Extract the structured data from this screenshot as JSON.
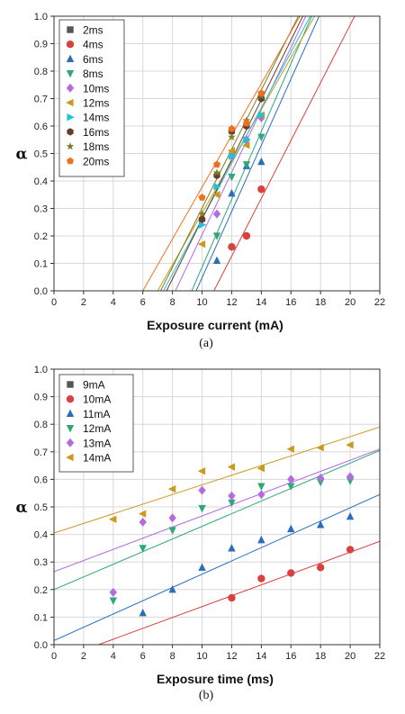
{
  "chart_data": [
    {
      "type": "scatter",
      "panel_label": "(a)",
      "xlabel": "Exposure current (mA)",
      "ylabel": "α",
      "xlim": [
        0,
        22
      ],
      "ylim": [
        0,
        1.0
      ],
      "xticks": [
        "0",
        "2",
        "4",
        "6",
        "8",
        "10",
        "12",
        "14",
        "16",
        "18",
        "20",
        "22"
      ],
      "yticks": [
        "0.0",
        "0.1",
        "0.2",
        "0.3",
        "0.4",
        "0.5",
        "0.6",
        "0.7",
        "0.8",
        "0.9",
        "1.0"
      ],
      "grid": true,
      "legend": "top-left",
      "series": [
        {
          "name": "2ms",
          "marker": "square",
          "color": "#555555",
          "x": [],
          "y": [],
          "fit": null
        },
        {
          "name": "4ms",
          "marker": "circle",
          "color": "#d9413f",
          "x": [
            12,
            13,
            14
          ],
          "y": [
            0.16,
            0.2,
            0.37
          ],
          "fit": [
            [
              10.8,
              0
            ],
            [
              20.3,
              1.0
            ]
          ]
        },
        {
          "name": "6ms",
          "marker": "triangle-up",
          "color": "#2a6ebb",
          "x": [
            11,
            12,
            13,
            14
          ],
          "y": [
            0.11,
            0.355,
            0.455,
            0.47
          ],
          "fit": [
            [
              9.6,
              0
            ],
            [
              17.9,
              1.0
            ]
          ]
        },
        {
          "name": "8ms",
          "marker": "triangle-down",
          "color": "#2ea878",
          "x": [
            11,
            12,
            13,
            14
          ],
          "y": [
            0.2,
            0.415,
            0.46,
            0.56
          ],
          "fit": [
            [
              9.3,
              0
            ],
            [
              17.4,
              1.0
            ]
          ]
        },
        {
          "name": "10ms",
          "marker": "diamond",
          "color": "#b56be0",
          "x": [
            11,
            12,
            13,
            14
          ],
          "y": [
            0.28,
            0.49,
            0.55,
            0.63
          ],
          "fit": [
            [
              8.2,
              0
            ],
            [
              17.0,
              1.0
            ]
          ]
        },
        {
          "name": "12ms",
          "marker": "triangle-left",
          "color": "#c89a20",
          "x": [
            10,
            11,
            12,
            13,
            14
          ],
          "y": [
            0.17,
            0.35,
            0.51,
            0.53,
            0.64
          ],
          "fit": [
            [
              7.0,
              0
            ],
            [
              17.6,
              1.0
            ]
          ]
        },
        {
          "name": "14ms",
          "marker": "triangle-right",
          "color": "#1fc4d4",
          "x": [
            10,
            11,
            12,
            13,
            14
          ],
          "y": [
            0.24,
            0.38,
            0.49,
            0.55,
            0.64
          ],
          "fit": [
            [
              7.4,
              0
            ],
            [
              17.3,
              1.0
            ]
          ]
        },
        {
          "name": "16ms",
          "marker": "hexagon",
          "color": "#6b3a2e",
          "x": [
            10,
            11,
            12,
            13,
            14
          ],
          "y": [
            0.26,
            0.42,
            0.58,
            0.6,
            0.7
          ],
          "fit": [
            [
              7.6,
              0
            ],
            [
              16.8,
              1.0
            ]
          ]
        },
        {
          "name": "18ms",
          "marker": "star",
          "color": "#7a7f20",
          "x": [
            10,
            11,
            12,
            13,
            14
          ],
          "y": [
            0.28,
            0.43,
            0.56,
            0.62,
            0.71
          ],
          "fit": [
            [
              7.2,
              0
            ],
            [
              16.5,
              1.0
            ]
          ]
        },
        {
          "name": "20ms",
          "marker": "pentagon",
          "color": "#f07020",
          "x": [
            10,
            11,
            12,
            13,
            14
          ],
          "y": [
            0.34,
            0.46,
            0.59,
            0.61,
            0.72
          ],
          "fit": [
            [
              6.0,
              0
            ],
            [
              16.6,
              1.0
            ]
          ]
        }
      ]
    },
    {
      "type": "scatter",
      "panel_label": "(b)",
      "xlabel": "Exposure time (ms)",
      "ylabel": "α",
      "xlim": [
        0,
        22
      ],
      "ylim": [
        0,
        1.0
      ],
      "xticks": [
        "0",
        "2",
        "4",
        "6",
        "8",
        "10",
        "12",
        "14",
        "16",
        "18",
        "20",
        "22"
      ],
      "yticks": [
        "0.0",
        "0.1",
        "0.2",
        "0.3",
        "0.4",
        "0.5",
        "0.6",
        "0.7",
        "0.8",
        "0.9",
        "1.0"
      ],
      "grid": true,
      "legend": "top-left",
      "series": [
        {
          "name": "9mA",
          "marker": "square",
          "color": "#555555",
          "x": [],
          "y": [],
          "fit": null
        },
        {
          "name": "10mA",
          "marker": "circle",
          "color": "#d9413f",
          "x": [
            12,
            14,
            16,
            18,
            20
          ],
          "y": [
            0.17,
            0.24,
            0.26,
            0.28,
            0.345
          ],
          "fit": [
            [
              3,
              0
            ],
            [
              22,
              0.375
            ]
          ]
        },
        {
          "name": "11mA",
          "marker": "triangle-up",
          "color": "#2a6ebb",
          "x": [
            6,
            8,
            10,
            12,
            14,
            16,
            18,
            20
          ],
          "y": [
            0.115,
            0.2,
            0.28,
            0.35,
            0.38,
            0.42,
            0.435,
            0.465
          ],
          "fit": [
            [
              0,
              0.015
            ],
            [
              22,
              0.545
            ]
          ]
        },
        {
          "name": "12mA",
          "marker": "triangle-down",
          "color": "#2ea878",
          "x": [
            4,
            6,
            8,
            10,
            12,
            14,
            16,
            18,
            20
          ],
          "y": [
            0.16,
            0.35,
            0.415,
            0.495,
            0.515,
            0.575,
            0.575,
            0.59,
            0.595
          ],
          "fit": [
            [
              0,
              0.2
            ],
            [
              22,
              0.705
            ]
          ]
        },
        {
          "name": "13mA",
          "marker": "diamond",
          "color": "#b56be0",
          "x": [
            4,
            6,
            8,
            10,
            12,
            14,
            16,
            18,
            20
          ],
          "y": [
            0.19,
            0.445,
            0.46,
            0.56,
            0.54,
            0.545,
            0.6,
            0.605,
            0.61
          ],
          "fit": [
            [
              0,
              0.265
            ],
            [
              22,
              0.71
            ]
          ]
        },
        {
          "name": "14mA",
          "marker": "triangle-left",
          "color": "#c89a20",
          "x": [
            4,
            6,
            8,
            10,
            12,
            14,
            16,
            18,
            20
          ],
          "y": [
            0.455,
            0.475,
            0.565,
            0.63,
            0.645,
            0.64,
            0.71,
            0.715,
            0.725
          ],
          "fit": [
            [
              0,
              0.405
            ],
            [
              22,
              0.79
            ]
          ]
        }
      ]
    }
  ]
}
